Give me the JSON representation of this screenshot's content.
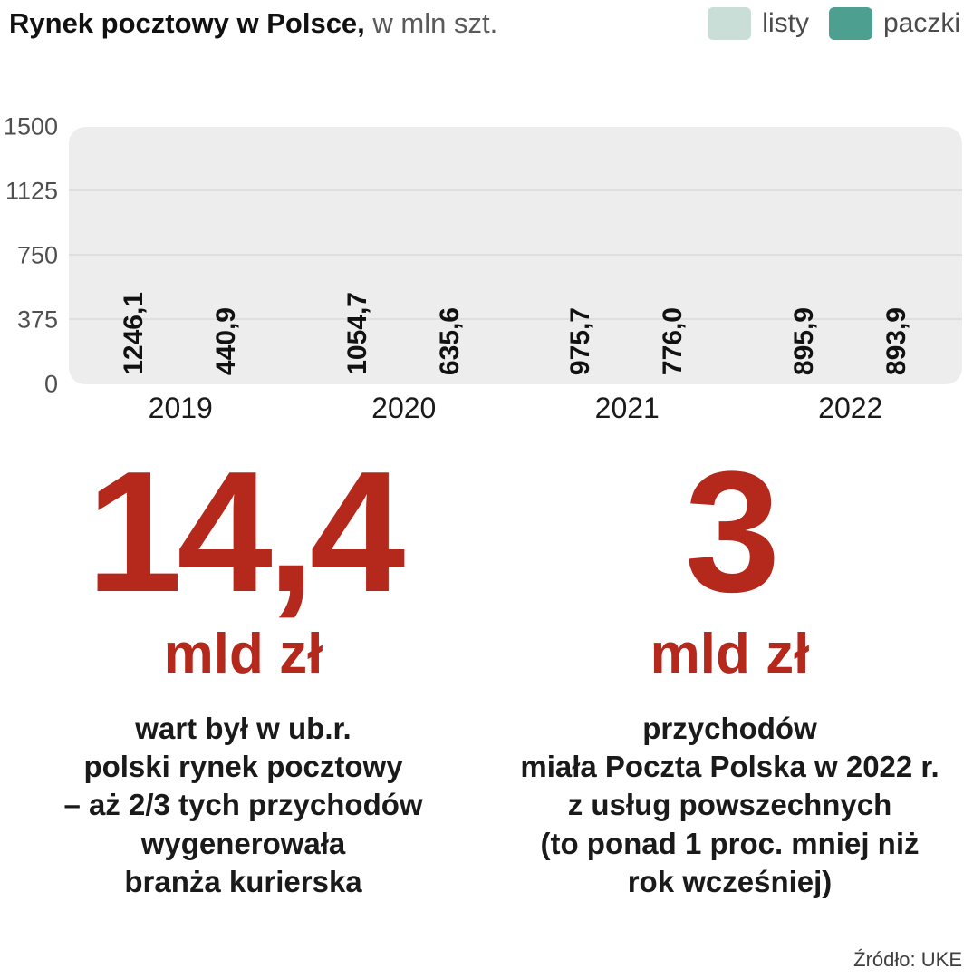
{
  "header": {
    "title_bold": "Rynek pocztowy w Polsce,",
    "title_unit": " w mln szt."
  },
  "legend": [
    {
      "label": "listy",
      "color": "#c8ded7"
    },
    {
      "label": "paczki",
      "color": "#4d9f90"
    }
  ],
  "chart_data": {
    "type": "bar",
    "title": "Rynek pocztowy w Polsce, w mln szt.",
    "categories": [
      "2019",
      "2020",
      "2021",
      "2022"
    ],
    "series": [
      {
        "name": "listy",
        "color": "#c8ded7",
        "values": [
          1246.1,
          1054.7,
          975.7,
          895.9
        ],
        "labels": [
          "1246,1",
          "1054,7",
          "975,7",
          "895,9"
        ]
      },
      {
        "name": "paczki",
        "color": "#4d9f90",
        "values": [
          440.9,
          635.6,
          776.0,
          893.9
        ],
        "labels": [
          "440,9",
          "635,6",
          "776,0",
          "893,9"
        ]
      }
    ],
    "xlabel": "",
    "ylabel": "",
    "ylim": [
      0,
      1500
    ],
    "yticks": [
      0,
      375,
      750,
      1125,
      1500
    ],
    "grid": true,
    "legend_position": "top-right"
  },
  "stats": [
    {
      "value": "14,4",
      "unit": "mld zł",
      "lines": [
        "wart był w ub.r.",
        "polski rynek pocztowy",
        "– aż 2/3 tych przychodów",
        "wygenerowała",
        "branża kurierska"
      ]
    },
    {
      "value": "3",
      "unit": "mld zł",
      "lines": [
        "przychodów",
        "miała Poczta Polska w 2022 r.",
        "z usług powszechnych",
        "(to ponad 1 proc. mniej niż",
        "rok wcześniej)"
      ]
    }
  ],
  "source": "Źródło: UKE",
  "colors": {
    "accent_red": "#b5281c",
    "bar_light": "#c8ded7",
    "bar_dark": "#4d9f90",
    "plot_bg": "#ededed"
  }
}
